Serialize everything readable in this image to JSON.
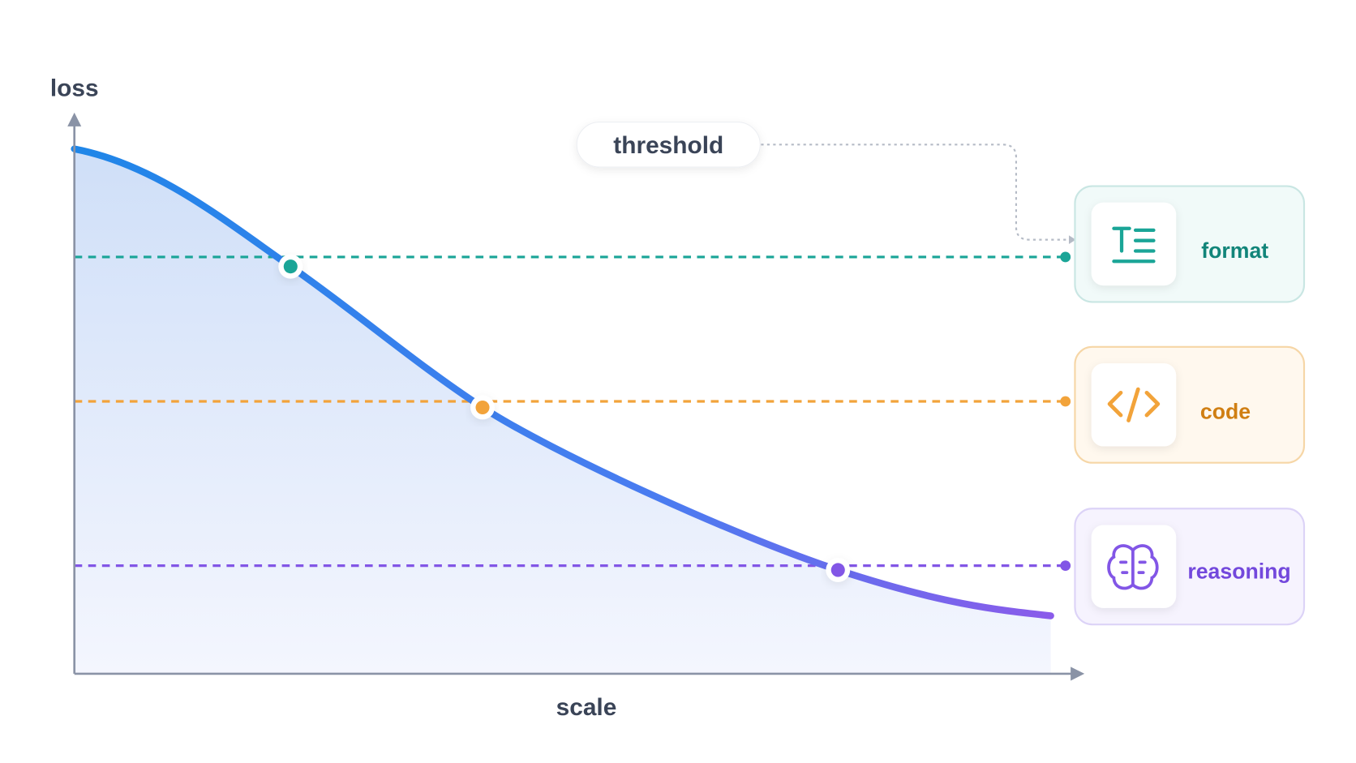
{
  "axes": {
    "y_label": "loss",
    "x_label": "scale"
  },
  "threshold": "threshold",
  "cards": [
    {
      "label": "format"
    },
    {
      "label": "code"
    },
    {
      "label": "reasoning"
    }
  ]
}
